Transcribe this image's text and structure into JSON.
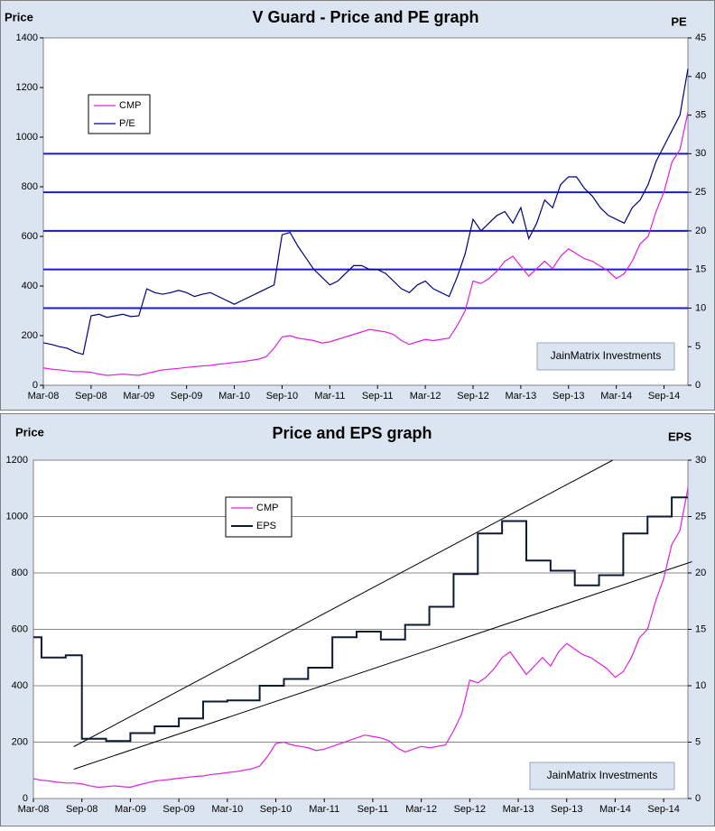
{
  "chart_data": [
    {
      "type": "line",
      "title": "V Guard - Price and PE graph",
      "y_label": "Price",
      "y2_label": "PE",
      "categories": [
        "Mar-08",
        null,
        null,
        null,
        null,
        null,
        "Sep-08",
        null,
        null,
        null,
        null,
        null,
        "Mar-09",
        null,
        null,
        null,
        null,
        null,
        "Sep-09",
        null,
        null,
        null,
        null,
        null,
        "Mar-10",
        null,
        null,
        null,
        null,
        null,
        "Sep-10",
        null,
        null,
        null,
        null,
        null,
        "Mar-11",
        null,
        null,
        null,
        null,
        null,
        "Sep-11",
        null,
        null,
        null,
        null,
        null,
        "Mar-12",
        null,
        null,
        null,
        null,
        null,
        "Sep-12",
        null,
        null,
        null,
        null,
        null,
        "Mar-13",
        null,
        null,
        null,
        null,
        null,
        "Sep-13",
        null,
        null,
        null,
        null,
        null,
        "Mar-14",
        null,
        null,
        null,
        null,
        null,
        "Sep-14",
        null,
        null,
        null
      ],
      "series": [
        {
          "name": "CMP",
          "color": "#e020e0",
          "values": [
            70,
            65,
            62,
            58,
            55,
            55,
            52,
            45,
            40,
            42,
            45,
            42,
            40,
            48,
            55,
            62,
            65,
            68,
            72,
            75,
            78,
            80,
            85,
            88,
            92,
            95,
            100,
            105,
            115,
            150,
            195,
            200,
            190,
            185,
            180,
            170,
            175,
            185,
            195,
            205,
            215,
            225,
            220,
            215,
            205,
            180,
            165,
            175,
            185,
            180,
            185,
            190,
            240,
            300,
            420,
            410,
            430,
            460,
            500,
            520,
            480,
            440,
            470,
            500,
            470,
            520,
            550,
            530,
            510,
            500,
            480,
            460,
            430,
            450,
            500,
            570,
            600,
            700,
            780,
            900,
            950,
            1100
          ]
        },
        {
          "name": "P/E",
          "color": "#000080",
          "axis": "y2",
          "values": [
            5.5,
            5.3,
            5,
            4.8,
            4.3,
            4,
            9,
            9.2,
            8.8,
            9,
            9.2,
            8.9,
            9,
            12.5,
            12,
            11.8,
            12,
            12.3,
            12,
            11.5,
            11.8,
            12,
            11.5,
            11,
            10.5,
            11,
            11.5,
            12,
            12.5,
            13,
            19.5,
            19.8,
            18,
            16.5,
            15,
            14,
            13,
            13.5,
            14.5,
            15.5,
            15.5,
            15,
            15,
            14.5,
            13.5,
            12.5,
            12,
            13,
            13.5,
            12.5,
            12,
            11.5,
            14,
            17,
            21.5,
            20,
            21,
            22,
            22.5,
            21,
            23,
            19,
            21,
            24,
            23,
            26,
            27,
            27,
            25.5,
            24.5,
            23,
            22,
            21.5,
            21,
            23,
            24,
            26,
            29,
            31,
            33,
            35,
            41
          ]
        }
      ],
      "y2_reference_lines": [
        10,
        15,
        20,
        25,
        30
      ],
      "reference_color": "#1a1acc",
      "ylim": [
        0,
        1400
      ],
      "yticks": [
        0,
        200,
        400,
        600,
        800,
        1000,
        1200,
        1400
      ],
      "y2lim": [
        0,
        45
      ],
      "y2ticks": [
        0,
        5,
        10,
        15,
        20,
        25,
        30,
        35,
        40,
        45
      ],
      "grid": false,
      "legend": "upper left",
      "annotation": "JainMatrix Investments"
    },
    {
      "type": "line",
      "title": "Price and EPS graph",
      "y_label": "Price",
      "y2_label": "EPS",
      "categories": [
        "Mar-08",
        null,
        null,
        null,
        null,
        null,
        "Sep-08",
        null,
        null,
        null,
        null,
        null,
        "Mar-09",
        null,
        null,
        null,
        null,
        null,
        "Sep-09",
        null,
        null,
        null,
        null,
        null,
        "Mar-10",
        null,
        null,
        null,
        null,
        null,
        "Sep-10",
        null,
        null,
        null,
        null,
        null,
        "Mar-11",
        null,
        null,
        null,
        null,
        null,
        "Sep-11",
        null,
        null,
        null,
        null,
        null,
        "Mar-12",
        null,
        null,
        null,
        null,
        null,
        "Sep-12",
        null,
        null,
        null,
        null,
        null,
        "Mar-13",
        null,
        null,
        null,
        null,
        null,
        "Sep-13",
        null,
        null,
        null,
        null,
        null,
        "Mar-14",
        null,
        null,
        null,
        null,
        null,
        "Sep-14",
        null,
        null,
        null
      ],
      "series": [
        {
          "name": "CMP",
          "color": "#e020e0",
          "values": [
            70,
            65,
            62,
            58,
            55,
            55,
            52,
            45,
            40,
            42,
            45,
            42,
            40,
            48,
            55,
            62,
            65,
            68,
            72,
            75,
            78,
            80,
            85,
            88,
            92,
            95,
            100,
            105,
            115,
            150,
            195,
            200,
            190,
            185,
            180,
            170,
            175,
            185,
            195,
            205,
            215,
            225,
            220,
            215,
            205,
            180,
            165,
            175,
            185,
            180,
            185,
            190,
            240,
            300,
            420,
            410,
            430,
            460,
            500,
            520,
            480,
            440,
            470,
            500,
            470,
            520,
            550,
            530,
            510,
            500,
            480,
            460,
            430,
            450,
            500,
            570,
            600,
            700,
            780,
            900,
            950,
            1100
          ]
        },
        {
          "name": "EPS",
          "color": "#0d1a33",
          "axis": "y2",
          "step": true,
          "values": [
            14.3,
            12.5,
            12.5,
            12.5,
            12.7,
            12.7,
            5.3,
            5.3,
            5.3,
            5.1,
            5.1,
            5.1,
            5.8,
            5.8,
            5.8,
            6.4,
            6.4,
            6.4,
            7.1,
            7.1,
            7.1,
            8.6,
            8.6,
            8.6,
            8.7,
            8.7,
            8.7,
            8.7,
            10,
            10,
            10,
            10.6,
            10.6,
            10.6,
            11.6,
            11.6,
            11.6,
            14.3,
            14.3,
            14.3,
            14.8,
            14.8,
            14.8,
            14.1,
            14.1,
            14.1,
            15.4,
            15.4,
            15.4,
            17,
            17,
            17,
            19.9,
            19.9,
            19.9,
            23.5,
            23.5,
            23.5,
            24.6,
            24.6,
            24.6,
            21.1,
            21.1,
            21.1,
            20.2,
            20.2,
            20.2,
            18.9,
            18.9,
            18.9,
            19.8,
            19.8,
            19.8,
            23.5,
            23.5,
            23.5,
            25,
            25,
            25,
            26.7,
            26.7,
            26.7
          ]
        }
      ],
      "trend_lines": [
        {
          "x": [
            5,
            71.7
          ],
          "values": [
            4.6,
            30
          ]
        },
        {
          "x": [
            5,
            81.5
          ],
          "values": [
            2.6,
            21
          ]
        }
      ],
      "ylim": [
        0,
        1200
      ],
      "yticks": [
        0,
        200,
        400,
        600,
        800,
        1000,
        1200
      ],
      "y2lim": [
        0,
        30
      ],
      "y2ticks": [
        0,
        5,
        10,
        15,
        20,
        25,
        30
      ],
      "grid": true,
      "legend": "upper left",
      "annotation": "JainMatrix Investments"
    }
  ]
}
